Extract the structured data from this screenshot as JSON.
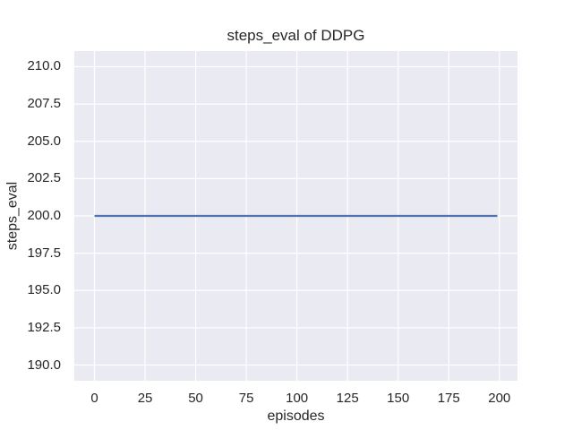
{
  "chart_data": {
    "type": "line",
    "title": "steps_eval of DDPG",
    "xlabel": "episodes",
    "ylabel": "steps_eval",
    "xlim": [
      -9.95,
      208.95
    ],
    "ylim": [
      188.95,
      211.05
    ],
    "grid": true,
    "legend": false,
    "xticks": [
      {
        "value": 0,
        "label": "0"
      },
      {
        "value": 25,
        "label": "25"
      },
      {
        "value": 50,
        "label": "50"
      },
      {
        "value": 75,
        "label": "75"
      },
      {
        "value": 100,
        "label": "100"
      },
      {
        "value": 125,
        "label": "125"
      },
      {
        "value": 150,
        "label": "150"
      },
      {
        "value": 175,
        "label": "175"
      },
      {
        "value": 200,
        "label": "200"
      }
    ],
    "yticks": [
      {
        "value": 210.0,
        "label": "210.0"
      },
      {
        "value": 207.5,
        "label": "207.5"
      },
      {
        "value": 205.0,
        "label": "205.0"
      },
      {
        "value": 202.5,
        "label": "202.5"
      },
      {
        "value": 200.0,
        "label": "200.0"
      },
      {
        "value": 197.5,
        "label": "197.5"
      },
      {
        "value": 195.0,
        "label": "195.0"
      },
      {
        "value": 192.5,
        "label": "192.5"
      },
      {
        "value": 190.0,
        "label": "190.0"
      }
    ],
    "series": [
      {
        "name": "DDPG",
        "color": "#4c72b0",
        "x": [
          0,
          199
        ],
        "y": [
          200,
          200
        ]
      }
    ],
    "colors": {
      "figure_background": "#ffffff",
      "axes_background": "#eaeaf2",
      "grid": "#ffffff",
      "text": "#262626"
    }
  }
}
